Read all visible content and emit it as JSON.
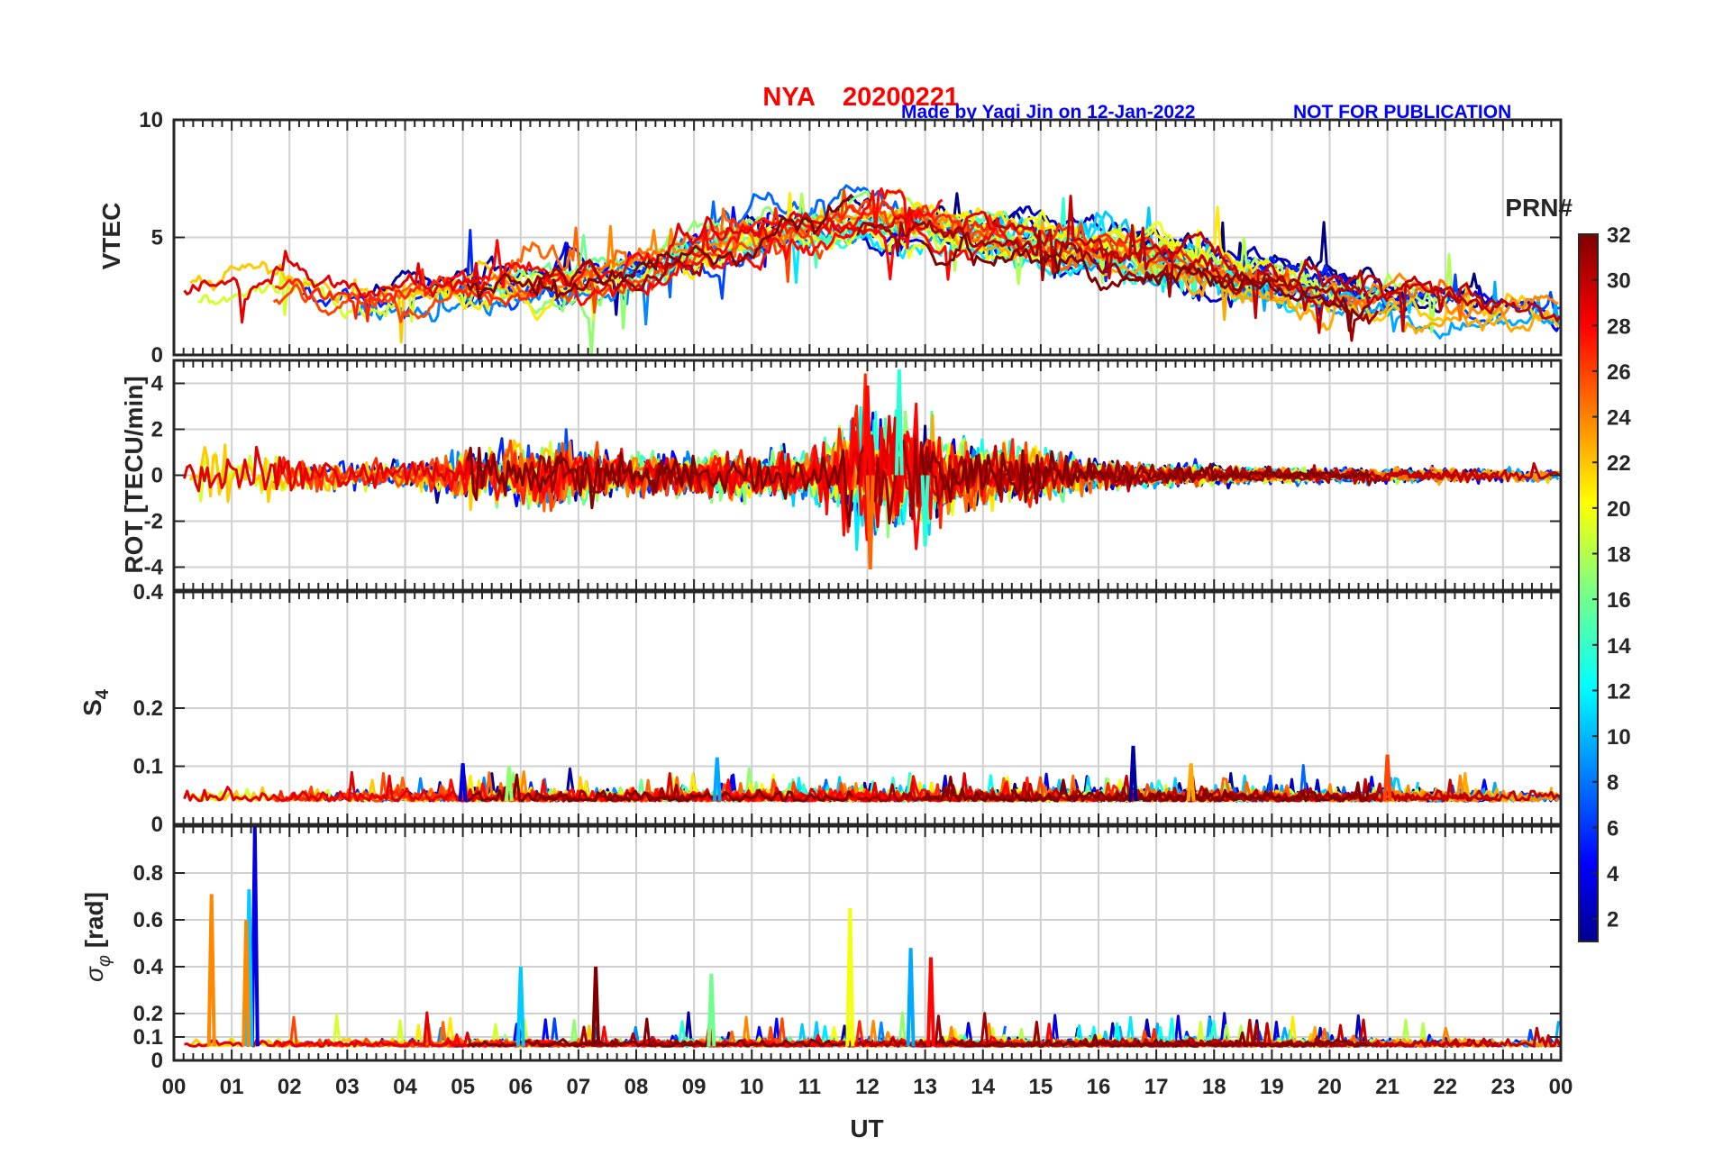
{
  "header": {
    "station": "NYA",
    "date": "20200221",
    "credit": "Made by Yaqi Jin on 12-Jan-2022",
    "notice": "NOT FOR PUBLICATION"
  },
  "chart_data": [
    {
      "type": "line",
      "panel": "vtec",
      "ylabel": "VTEC",
      "ylim": [
        0,
        10
      ],
      "yticks": [
        0,
        5,
        10
      ],
      "ytick_labels": [
        "0",
        "5",
        "10"
      ],
      "grid": true,
      "baseline": [
        [
          0,
          2.2
        ],
        [
          1,
          2.4
        ],
        [
          2,
          3.0
        ],
        [
          3,
          2.2
        ],
        [
          4,
          2.6
        ],
        [
          5,
          2.6
        ],
        [
          6,
          2.9
        ],
        [
          7,
          3.1
        ],
        [
          8,
          3.5
        ],
        [
          9,
          4.3
        ],
        [
          10,
          4.9
        ],
        [
          11,
          5.3
        ],
        [
          12,
          5.6
        ],
        [
          13,
          5.3
        ],
        [
          14,
          5.0
        ],
        [
          15,
          4.6
        ],
        [
          16,
          4.3
        ],
        [
          17,
          3.9
        ],
        [
          18,
          3.5
        ],
        [
          19,
          3.0
        ],
        [
          20,
          2.6
        ],
        [
          21,
          2.3
        ],
        [
          22,
          2.0
        ],
        [
          23,
          1.7
        ],
        [
          24,
          1.6
        ]
      ]
    },
    {
      "type": "line",
      "panel": "rot",
      "ylabel": "ROT [TECU/min]",
      "ylim": [
        -5,
        5
      ],
      "yticks": [
        -4,
        -2,
        0,
        2,
        4
      ],
      "ytick_labels": [
        "-4",
        "-2",
        "0",
        "2",
        "4"
      ],
      "grid": true,
      "amplitude": [
        [
          0,
          0.8
        ],
        [
          1,
          1.3
        ],
        [
          2,
          1.0
        ],
        [
          3,
          0.6
        ],
        [
          4,
          0.6
        ],
        [
          5,
          1.1
        ],
        [
          6,
          1.4
        ],
        [
          7,
          1.2
        ],
        [
          8,
          0.8
        ],
        [
          9,
          1.0
        ],
        [
          10,
          0.9
        ],
        [
          11,
          1.0
        ],
        [
          12,
          2.6
        ],
        [
          13,
          2.0
        ],
        [
          14,
          1.3
        ],
        [
          15,
          1.1
        ],
        [
          16,
          0.6
        ],
        [
          17,
          0.4
        ],
        [
          18,
          0.4
        ],
        [
          19,
          0.3
        ],
        [
          20,
          0.3
        ],
        [
          21,
          0.3
        ],
        [
          22,
          0.3
        ],
        [
          23,
          0.3
        ],
        [
          24,
          0.3
        ]
      ],
      "peaks": [
        {
          "x": 12.05,
          "y": -4.1
        },
        {
          "x": 12.55,
          "y": 4.6
        },
        {
          "x": 12.0,
          "y": 3.9
        },
        {
          "x": 13.0,
          "y": -3.1
        }
      ]
    },
    {
      "type": "line",
      "panel": "s4",
      "ylabel": "S4",
      "ylim": [
        0,
        0.4
      ],
      "yticks": [
        0,
        0.1,
        0.2,
        0.4
      ],
      "ytick_labels": [
        "0",
        "0.1",
        "0.2",
        "0.4"
      ],
      "grid": true,
      "baseline": 0.04,
      "peaks": [
        {
          "x": 16.6,
          "y": 0.135
        },
        {
          "x": 9.4,
          "y": 0.115
        },
        {
          "x": 21.0,
          "y": 0.12
        },
        {
          "x": 5.0,
          "y": 0.105
        },
        {
          "x": 5.8,
          "y": 0.1
        },
        {
          "x": 17.6,
          "y": 0.105
        }
      ]
    },
    {
      "type": "line",
      "panel": "sigma-phi",
      "ylabel": "σφ [rad]",
      "ylim": [
        0,
        1.0
      ],
      "yticks": [
        0,
        0.1,
        0.2,
        0.4,
        0.6,
        0.8
      ],
      "ytick_labels": [
        "0",
        "0.1",
        "0.2",
        "0.4",
        "0.6",
        "0.8"
      ],
      "grid": true,
      "baseline": 0.06,
      "peaks": [
        {
          "x": 1.4,
          "y": 1.0
        },
        {
          "x": 0.65,
          "y": 0.71
        },
        {
          "x": 1.3,
          "y": 0.73
        },
        {
          "x": 1.25,
          "y": 0.6
        },
        {
          "x": 11.7,
          "y": 0.65
        },
        {
          "x": 6.0,
          "y": 0.4
        },
        {
          "x": 7.3,
          "y": 0.4
        },
        {
          "x": 12.75,
          "y": 0.48
        },
        {
          "x": 13.1,
          "y": 0.44
        },
        {
          "x": 9.3,
          "y": 0.37
        }
      ]
    }
  ],
  "x_axis": {
    "label": "UT",
    "ticks": [
      0,
      1,
      2,
      3,
      4,
      5,
      6,
      7,
      8,
      9,
      10,
      11,
      12,
      13,
      14,
      15,
      16,
      17,
      18,
      19,
      20,
      21,
      22,
      23,
      24
    ],
    "tick_labels": [
      "00",
      "01",
      "02",
      "03",
      "04",
      "05",
      "06",
      "07",
      "08",
      "09",
      "10",
      "11",
      "12",
      "13",
      "14",
      "15",
      "16",
      "17",
      "18",
      "19",
      "20",
      "21",
      "22",
      "23",
      "00"
    ],
    "xlim": [
      0,
      24
    ]
  },
  "colorbar": {
    "title": "PRN#",
    "range": [
      1,
      32
    ],
    "ticks": [
      2,
      4,
      6,
      8,
      10,
      12,
      14,
      16,
      18,
      20,
      22,
      24,
      26,
      28,
      30,
      32
    ],
    "tick_labels": [
      "2",
      "4",
      "6",
      "8",
      "10",
      "12",
      "14",
      "16",
      "18",
      "20",
      "22",
      "24",
      "26",
      "28",
      "30",
      "32"
    ],
    "colormap": "jet"
  }
}
